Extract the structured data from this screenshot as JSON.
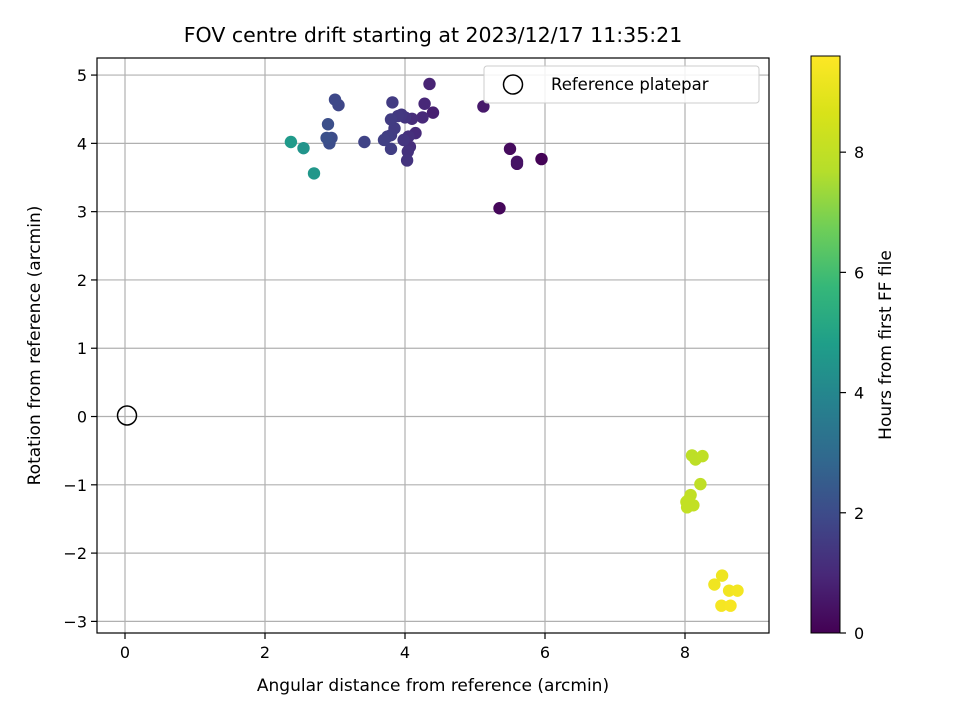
{
  "chart_data": {
    "type": "scatter",
    "title": "FOV centre drift starting at 2023/12/17 11:35:21",
    "xlabel": "Angular distance from reference (arcmin)",
    "ylabel": "Rotation from reference (arcmin)",
    "xlim": [
      -0.4,
      9.2
    ],
    "ylim": [
      -3.17,
      5.25
    ],
    "x_ticks": [
      0,
      2,
      4,
      6,
      8
    ],
    "x_tick_labels": [
      "0",
      "2",
      "4",
      "6",
      "8"
    ],
    "y_ticks": [
      -3,
      -2,
      -1,
      0,
      1,
      2,
      3,
      4,
      5
    ],
    "y_tick_labels": [
      "−3",
      "−2",
      "−1",
      "0",
      "1",
      "2",
      "3",
      "4",
      "5"
    ],
    "grid": true,
    "legend": {
      "placement": "top-right",
      "entries": [
        "Reference platepar"
      ]
    },
    "reference_point": {
      "x": 0,
      "y": 0
    },
    "colorbar": {
      "label": "Hours from first FF file",
      "range": [
        0,
        9.6
      ],
      "ticks": [
        0,
        2,
        4,
        6,
        8
      ],
      "tick_labels": [
        "0",
        "2",
        "4",
        "6",
        "8"
      ],
      "colormap": "viridis"
    },
    "points": [
      {
        "x": 5.95,
        "y": 3.77,
        "c": 0.05
      },
      {
        "x": 5.35,
        "y": 3.05,
        "c": 0.15
      },
      {
        "x": 5.5,
        "y": 3.92,
        "c": 0.25
      },
      {
        "x": 5.6,
        "y": 3.7,
        "c": 0.35
      },
      {
        "x": 5.6,
        "y": 3.73,
        "c": 0.45
      },
      {
        "x": 5.12,
        "y": 4.54,
        "c": 0.6
      },
      {
        "x": 4.4,
        "y": 4.45,
        "c": 0.75
      },
      {
        "x": 4.35,
        "y": 4.87,
        "c": 0.85
      },
      {
        "x": 4.28,
        "y": 4.58,
        "c": 0.95
      },
      {
        "x": 4.25,
        "y": 4.38,
        "c": 1.0
      },
      {
        "x": 4.15,
        "y": 4.15,
        "c": 1.05
      },
      {
        "x": 4.1,
        "y": 4.36,
        "c": 1.1
      },
      {
        "x": 4.07,
        "y": 3.95,
        "c": 1.15
      },
      {
        "x": 4.05,
        "y": 4.1,
        "c": 1.2
      },
      {
        "x": 4.04,
        "y": 3.88,
        "c": 1.25
      },
      {
        "x": 4.03,
        "y": 3.75,
        "c": 1.3
      },
      {
        "x": 4.0,
        "y": 4.38,
        "c": 1.3
      },
      {
        "x": 3.98,
        "y": 4.05,
        "c": 1.35
      },
      {
        "x": 3.95,
        "y": 4.42,
        "c": 1.4
      },
      {
        "x": 3.9,
        "y": 4.4,
        "c": 1.45
      },
      {
        "x": 3.85,
        "y": 4.22,
        "c": 1.5
      },
      {
        "x": 3.82,
        "y": 4.6,
        "c": 1.5
      },
      {
        "x": 3.8,
        "y": 4.35,
        "c": 1.55
      },
      {
        "x": 3.8,
        "y": 4.12,
        "c": 1.55
      },
      {
        "x": 3.8,
        "y": 3.92,
        "c": 1.6
      },
      {
        "x": 3.75,
        "y": 4.1,
        "c": 1.6
      },
      {
        "x": 3.7,
        "y": 4.05,
        "c": 1.65
      },
      {
        "x": 3.42,
        "y": 4.02,
        "c": 1.75
      },
      {
        "x": 3.05,
        "y": 4.56,
        "c": 1.85
      },
      {
        "x": 3.0,
        "y": 4.64,
        "c": 1.9
      },
      {
        "x": 2.95,
        "y": 4.08,
        "c": 2.0
      },
      {
        "x": 2.92,
        "y": 4.0,
        "c": 2.05
      },
      {
        "x": 2.9,
        "y": 4.28,
        "c": 2.1
      },
      {
        "x": 2.88,
        "y": 4.08,
        "c": 2.15
      },
      {
        "x": 2.7,
        "y": 3.56,
        "c": 4.55
      },
      {
        "x": 2.55,
        "y": 3.93,
        "c": 4.45
      },
      {
        "x": 2.37,
        "y": 4.02,
        "c": 4.65
      },
      {
        "x": 8.1,
        "y": -0.57,
        "c": 7.9
      },
      {
        "x": 8.15,
        "y": -0.63,
        "c": 7.9
      },
      {
        "x": 8.25,
        "y": -0.58,
        "c": 7.95
      },
      {
        "x": 8.22,
        "y": -0.99,
        "c": 7.95
      },
      {
        "x": 8.08,
        "y": -1.15,
        "c": 8.0
      },
      {
        "x": 8.05,
        "y": -1.22,
        "c": 8.0
      },
      {
        "x": 8.02,
        "y": -1.25,
        "c": 8.05
      },
      {
        "x": 8.12,
        "y": -1.3,
        "c": 8.05
      },
      {
        "x": 8.03,
        "y": -1.33,
        "c": 8.05
      },
      {
        "x": 8.53,
        "y": -2.33,
        "c": 9.2
      },
      {
        "x": 8.42,
        "y": -2.46,
        "c": 9.25
      },
      {
        "x": 8.63,
        "y": -2.55,
        "c": 9.3
      },
      {
        "x": 8.75,
        "y": -2.55,
        "c": 9.35
      },
      {
        "x": 8.52,
        "y": -2.77,
        "c": 9.4
      },
      {
        "x": 8.65,
        "y": -2.77,
        "c": 9.45
      }
    ]
  }
}
